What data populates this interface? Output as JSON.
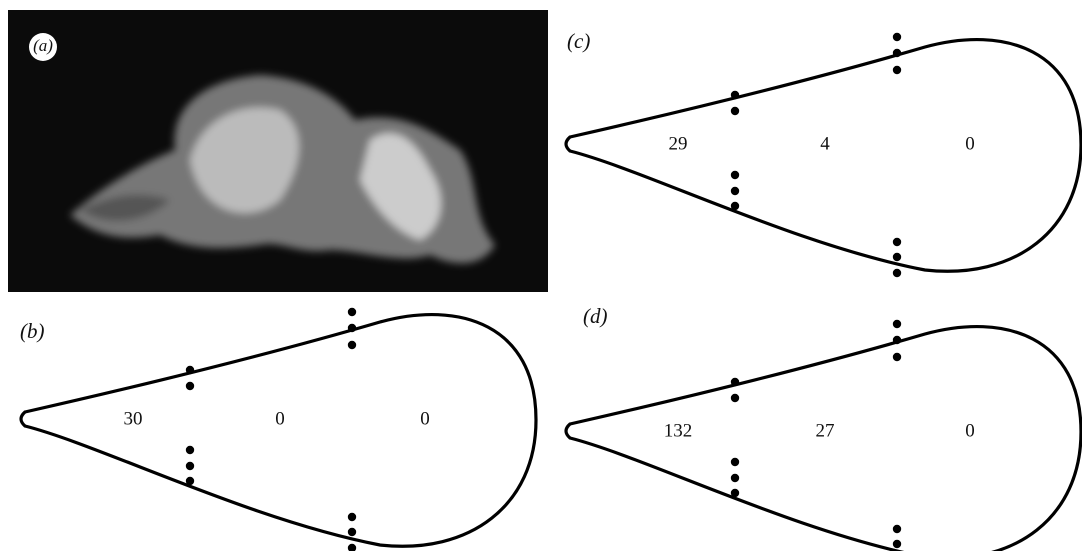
{
  "panels": [
    {
      "label": "(a)"
    },
    {
      "label": "(b)",
      "counts": [
        30,
        0,
        0
      ]
    },
    {
      "label": "(c)",
      "counts": [
        29,
        4,
        0
      ]
    },
    {
      "label": "(d)",
      "counts": [
        132,
        27,
        0
      ]
    }
  ]
}
